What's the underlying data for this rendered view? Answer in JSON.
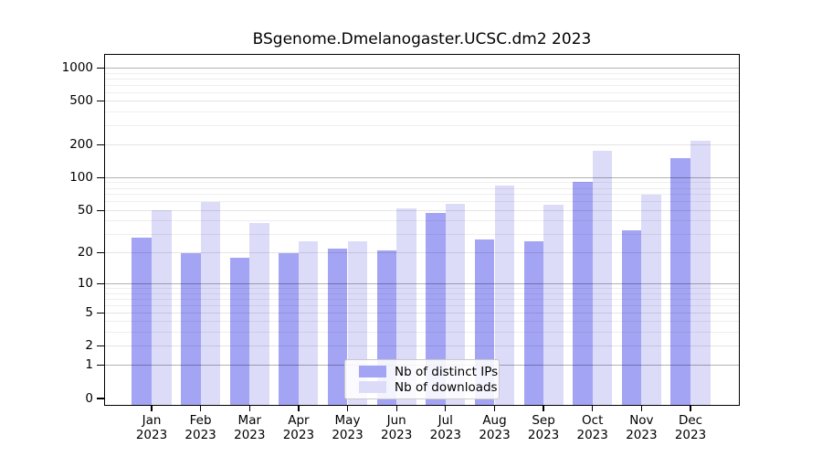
{
  "title": "BSgenome.Dmelanogaster.UCSC.dm2 2023",
  "colors": {
    "distinct_ips_bar": "#a4a4f4",
    "downloads_bar": "#dcdcf9",
    "axis": "#000000",
    "grid_major": "#b3b3b3",
    "grid_minor": "#ececec",
    "legend_border": "#c9c9c9",
    "legend_background": "#ffffff"
  },
  "chart_data": {
    "type": "bar",
    "title": "BSgenome.Dmelanogaster.UCSC.dm2 2023",
    "xlabel": "",
    "ylabel": "",
    "year": "2023",
    "categories": [
      "Jan 2023",
      "Feb 2023",
      "Mar 2023",
      "Apr 2023",
      "May 2023",
      "Jun 2023",
      "Jul 2023",
      "Aug 2023",
      "Sep 2023",
      "Oct 2023",
      "Nov 2023",
      "Dec 2023"
    ],
    "month_abbrevs": [
      "Jan",
      "Feb",
      "Mar",
      "Apr",
      "May",
      "Jun",
      "Jul",
      "Aug",
      "Sep",
      "Oct",
      "Nov",
      "Dec"
    ],
    "series": [
      {
        "name": "Nb of distinct IPs",
        "values": [
          28,
          20,
          18,
          20,
          22,
          21,
          47,
          27,
          26,
          91,
          33,
          150
        ]
      },
      {
        "name": "Nb of downloads",
        "values": [
          50,
          60,
          38,
          26,
          26,
          52,
          58,
          85,
          57,
          175,
          70,
          220
        ]
      }
    ],
    "y_scale": "log10(1+x)",
    "yticks": [
      0,
      1,
      2,
      5,
      10,
      20,
      50,
      100,
      200,
      500,
      1000
    ],
    "minor_gridlines": [
      3,
      4,
      6,
      7,
      8,
      9,
      30,
      40,
      60,
      70,
      80,
      90,
      300,
      400,
      600,
      700,
      800,
      900
    ],
    "ylim": [
      0,
      1350
    ],
    "grid": true,
    "legend_position": "inside lower-center"
  }
}
